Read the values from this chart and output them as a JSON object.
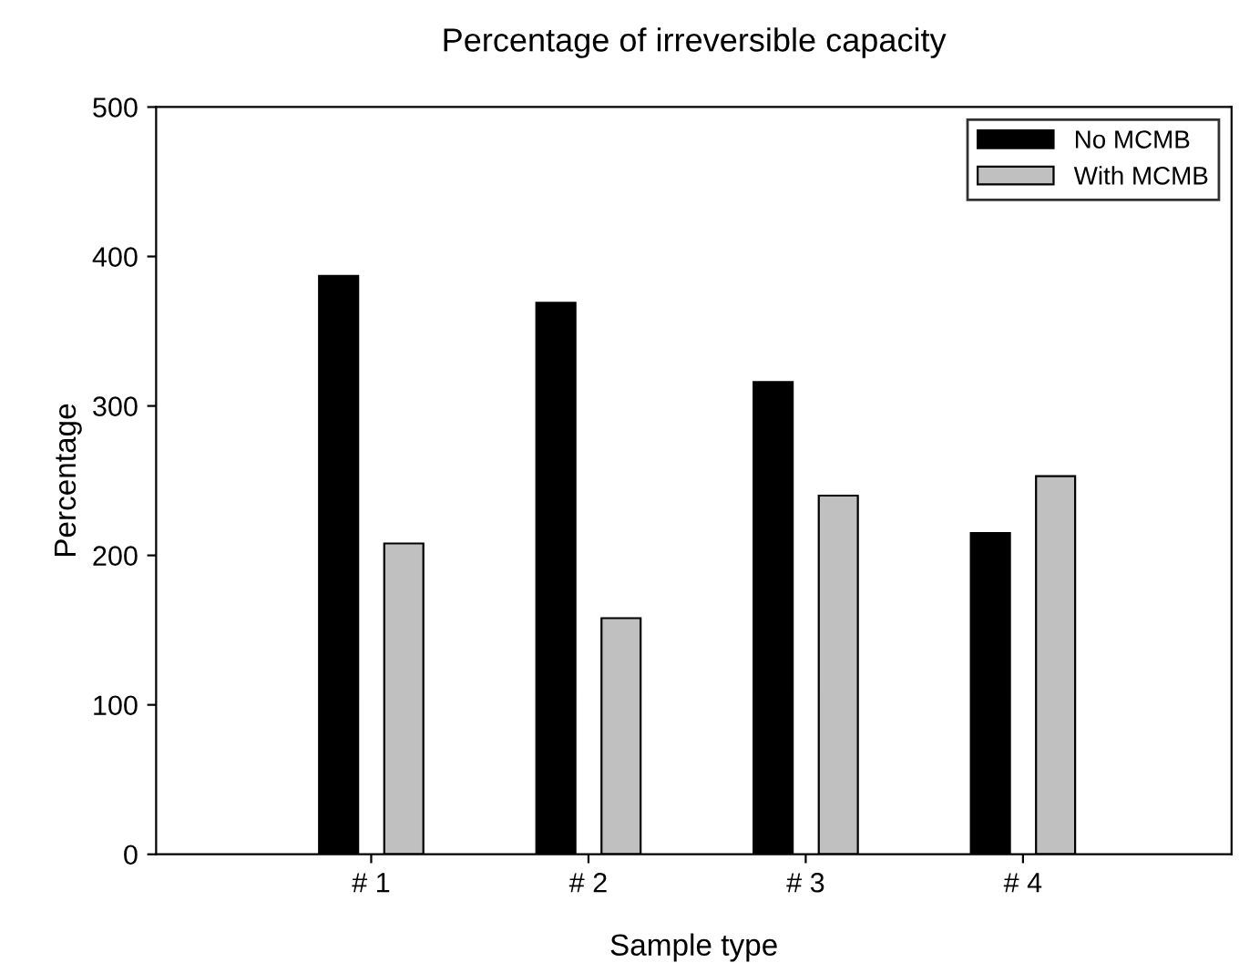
{
  "chart_data": {
    "type": "bar",
    "title": "Percentage of irreversible capacity",
    "xlabel": "Sample type",
    "ylabel": "Percentage",
    "categories": [
      "# 1",
      "# 2",
      "# 3",
      "# 4"
    ],
    "series": [
      {
        "name": "No MCMB",
        "color": "#000000",
        "values": [
          387,
          369,
          316,
          215
        ]
      },
      {
        "name": "With MCMB",
        "color": "#c0c0c0",
        "values": [
          208,
          158,
          240,
          253
        ]
      }
    ],
    "ylim": [
      0,
      500
    ],
    "yticks": [
      0,
      100,
      200,
      300,
      400,
      500
    ],
    "grid": false,
    "legend": "top right"
  }
}
